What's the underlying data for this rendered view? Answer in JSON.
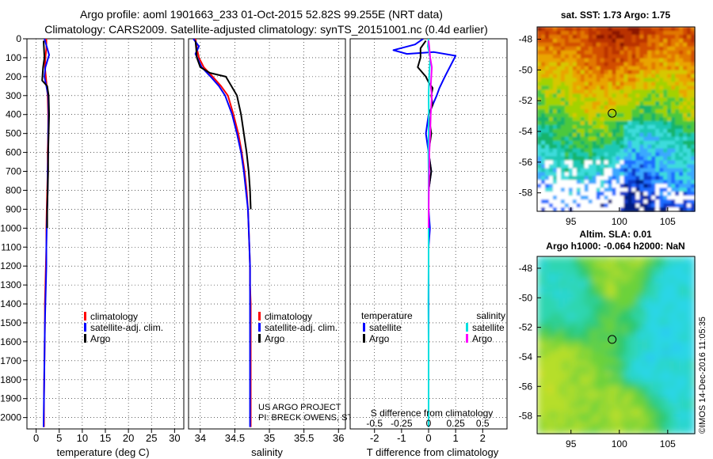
{
  "header": {
    "line1": "Argo profile: aoml 1901663_233 01-Oct-2015 52.82S 99.255E (NRT data)",
    "line2": "Climatology: CARS2009. Satellite-adjusted climatology: synTS_20151001.nc (0.4d earlier)"
  },
  "credits": {
    "project": "US ARGO PROJECT",
    "pis": "PI: BRECK OWENS, STEVE JAYNE, P.E. ROBBINS",
    "watermark": "©IMOS 14-Dec-2016 11:05:35"
  },
  "colors": {
    "climatology": "#ff0000",
    "satellite": "#0000ff",
    "argo": "#000000",
    "sal_satellite": "#00e0e0",
    "sal_argo": "#ff00ff"
  },
  "depth_ticks": [
    0,
    100,
    200,
    300,
    400,
    500,
    600,
    700,
    800,
    900,
    1000,
    1100,
    1200,
    1300,
    1400,
    1500,
    1600,
    1700,
    1800,
    1900,
    2000
  ],
  "chart_data": [
    {
      "type": "line",
      "id": "temperature",
      "xlabel": "temperature (deg C)",
      "ylabel": "",
      "xlim": [
        -2,
        32
      ],
      "ylim": [
        2060,
        0
      ],
      "xticks": [
        0,
        5,
        10,
        15,
        20,
        25,
        30
      ],
      "legend": [
        "climatology",
        "satellite-adj. clim.",
        "Argo"
      ],
      "series": [
        {
          "name": "climatology",
          "color": "#ff0000",
          "x": [
            2.2,
            2.2,
            2.0,
            1.9,
            2.1,
            2.3,
            2.5,
            2.6,
            2.6,
            2.5,
            2.5,
            2.4,
            2.3,
            2.2,
            2.2,
            2.1,
            2.0,
            1.9,
            1.9,
            1.8,
            1.7,
            1.7
          ],
          "y": [
            0,
            50,
            100,
            150,
            200,
            250,
            300,
            400,
            500,
            600,
            700,
            800,
            900,
            1000,
            1100,
            1200,
            1300,
            1400,
            1500,
            1700,
            1900,
            2050
          ]
        },
        {
          "name": "satellite-adj. clim.",
          "color": "#0000ff",
          "x": [
            1.8,
            2.4,
            2.8,
            2.0,
            1.8,
            2.2,
            2.6,
            2.7,
            2.6,
            2.6,
            2.5,
            2.5,
            2.4,
            2.3,
            2.2,
            2.2,
            2.1,
            2.0,
            1.9,
            1.8,
            1.7,
            1.6
          ],
          "y": [
            0,
            50,
            85,
            150,
            200,
            250,
            300,
            400,
            500,
            600,
            700,
            800,
            900,
            1000,
            1100,
            1200,
            1300,
            1400,
            1500,
            1700,
            1900,
            2050
          ]
        },
        {
          "name": "Argo",
          "color": "#000000",
          "x": [
            1.6,
            1.7,
            1.8,
            1.5,
            1.3,
            2.4,
            2.7,
            2.8,
            2.7,
            2.6,
            2.6,
            2.5,
            2.4,
            2.4
          ],
          "y": [
            10,
            50,
            100,
            150,
            220,
            250,
            300,
            400,
            500,
            600,
            700,
            800,
            900,
            1000
          ]
        }
      ]
    },
    {
      "type": "line",
      "id": "salinity",
      "xlabel": "salinity",
      "ylabel": "",
      "xlim": [
        33.83,
        36.1
      ],
      "ylim": [
        2060,
        0
      ],
      "xticks": [
        34,
        34.5,
        35,
        35.5,
        36
      ],
      "legend": [
        "climatology",
        "satellite-adj. clim.",
        "Argo"
      ],
      "series": [
        {
          "name": "climatology",
          "color": "#ff0000",
          "x": [
            33.93,
            33.95,
            33.98,
            34.05,
            34.18,
            34.3,
            34.4,
            34.48,
            34.55,
            34.6,
            34.64,
            34.67,
            34.69,
            34.7,
            34.71,
            34.72,
            34.72,
            34.73,
            34.73,
            34.73,
            34.73,
            34.73,
            34.73
          ],
          "y": [
            0,
            50,
            100,
            150,
            200,
            250,
            300,
            400,
            500,
            600,
            700,
            800,
            900,
            1000,
            1100,
            1200,
            1300,
            1400,
            1500,
            1600,
            1800,
            2000,
            2050
          ]
        },
        {
          "name": "satellite-adj. clim.",
          "color": "#0000ff",
          "x": [
            33.9,
            33.98,
            33.93,
            34.02,
            34.15,
            34.27,
            34.36,
            34.46,
            34.53,
            34.59,
            34.63,
            34.66,
            34.69,
            34.7,
            34.71,
            34.72,
            34.72,
            34.72,
            34.72,
            34.72,
            34.72,
            34.72
          ],
          "y": [
            0,
            40,
            80,
            150,
            200,
            250,
            300,
            400,
            500,
            600,
            700,
            800,
            900,
            1000,
            1100,
            1200,
            1300,
            1400,
            1500,
            1700,
            1900,
            2050
          ]
        },
        {
          "name": "Argo",
          "color": "#000000",
          "x": [
            33.93,
            33.94,
            33.95,
            34.0,
            34.14,
            34.37,
            34.45,
            34.53,
            34.59,
            34.63,
            34.67,
            34.7,
            34.72,
            34.73
          ],
          "y": [
            10,
            50,
            100,
            150,
            180,
            200,
            250,
            300,
            400,
            500,
            600,
            700,
            800,
            900
          ]
        }
      ]
    },
    {
      "type": "line",
      "id": "difference",
      "xlabel": "T difference from climatology",
      "xlabel_top": "S difference from climatology",
      "ylabel": "",
      "xlim": [
        -2.9,
        2.9
      ],
      "ylim": [
        2060,
        0
      ],
      "xticks": [
        -2,
        -1,
        0,
        1,
        2
      ],
      "sxticks": [
        -0.5,
        -0.25,
        0,
        0.25,
        0.5
      ],
      "legend_headers": [
        "temperature",
        "salinity"
      ],
      "legend": [
        "satellite",
        "Argo",
        "satellite",
        "Argo"
      ],
      "series": [
        {
          "name": "satellite",
          "group": "temperature",
          "color": "#0000ff",
          "x": [
            -0.2,
            -0.5,
            -1.3,
            -0.8,
            0.2,
            1.0,
            0.6,
            0.4,
            0.3,
            0.0,
            -0.1,
            0.0,
            0.1,
            0.0,
            0.0,
            0.05,
            0.0,
            0.0,
            0.0,
            0.0,
            0.0,
            0.0,
            0.0
          ],
          "y": [
            0,
            30,
            60,
            80,
            70,
            90,
            200,
            260,
            300,
            400,
            500,
            600,
            700,
            800,
            900,
            1000,
            1100,
            1200,
            1400,
            1600,
            1800,
            2000,
            2050
          ]
        },
        {
          "name": "Argo",
          "group": "temperature",
          "color": "#000000",
          "x": [
            -0.1,
            -0.3,
            -0.3,
            -0.4,
            -0.1,
            0.0,
            0.15,
            0.1,
            0.15,
            0.0,
            0.1,
            0.0,
            0.1,
            0.0,
            0.0
          ],
          "y": [
            10,
            50,
            100,
            150,
            200,
            230,
            260,
            300,
            350,
            400,
            500,
            600,
            700,
            800,
            1000
          ]
        },
        {
          "name": "satellite",
          "group": "salinity",
          "color": "#00e0e0",
          "x": [
            0.0,
            -0.03,
            0.06,
            0.02,
            0.0,
            0.01,
            0.0,
            -0.01,
            0.0,
            0.0,
            0.0,
            0.0,
            0.0,
            -0.01,
            0.0,
            0.0,
            0.0
          ],
          "y": [
            0,
            40,
            100,
            200,
            300,
            400,
            500,
            600,
            700,
            800,
            900,
            1000,
            1200,
            1400,
            1600,
            1800,
            2050
          ]
        },
        {
          "name": "Argo",
          "group": "salinity",
          "color": "#ff00ff",
          "x": [
            0.0,
            0.03,
            0.06,
            0.12,
            0.1,
            0.08,
            0.12,
            0.1,
            0.08,
            0.06,
            0.03,
            0.02,
            0.01,
            0.0
          ],
          "y": [
            10,
            50,
            100,
            150,
            200,
            250,
            300,
            350,
            400,
            500,
            600,
            700,
            800,
            1000
          ]
        }
      ]
    },
    {
      "type": "heatmap",
      "id": "sst-map",
      "title": "sat. SST: 1.73 Argo: 1.75",
      "xlim": [
        91.5,
        107.8
      ],
      "ylim": [
        -59.2,
        -47.2
      ],
      "xticks": [
        95,
        100,
        105
      ],
      "yticks": [
        -48,
        -50,
        -52,
        -54,
        -56,
        -58
      ],
      "marker": {
        "x": 99.255,
        "y": -52.82
      }
    },
    {
      "type": "heatmap",
      "id": "sla-map",
      "title": "Altim. SLA: 0.01",
      "subtitle": "Argo h1000: -0.064 h2000: NaN",
      "xlim": [
        91.5,
        107.8
      ],
      "ylim": [
        -59.2,
        -47.2
      ],
      "xticks": [
        95,
        100,
        105
      ],
      "yticks": [
        -48,
        -50,
        -52,
        -54,
        -56,
        -58
      ],
      "marker": {
        "x": 99.255,
        "y": -52.82
      }
    }
  ]
}
